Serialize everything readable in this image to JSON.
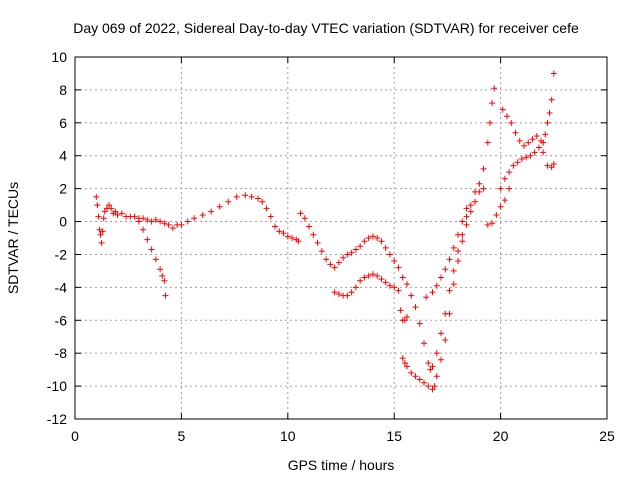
{
  "chart_data": {
    "type": "scatter",
    "title": "Day 069 of 2022, Sidereal Day-to-day VTEC variation (SDTVAR) for receiver cefe",
    "xlabel": "GPS time / hours",
    "ylabel": "SDTVAR / TECUs",
    "xlim": [
      0,
      25
    ],
    "ylim": [
      -12,
      10
    ],
    "xticks": [
      0,
      5,
      10,
      15,
      20,
      25
    ],
    "yticks": [
      -12,
      -10,
      -8,
      -6,
      -4,
      -2,
      0,
      2,
      4,
      6,
      8,
      10
    ],
    "grid": true,
    "marker": "+",
    "color": "#ff0000",
    "series": [
      {
        "points": [
          [
            1.0,
            1.5
          ],
          [
            1.05,
            1.0
          ],
          [
            1.1,
            0.3
          ],
          [
            1.15,
            -0.5
          ],
          [
            1.2,
            -0.8
          ],
          [
            1.25,
            -1.3
          ],
          [
            1.3,
            -0.6
          ],
          [
            1.35,
            0.2
          ],
          [
            1.4,
            0.6
          ],
          [
            1.5,
            0.8
          ],
          [
            1.6,
            1.0
          ],
          [
            1.7,
            0.8
          ],
          [
            1.8,
            0.5
          ],
          [
            1.9,
            0.6
          ],
          [
            2.0,
            0.4
          ],
          [
            2.2,
            0.5
          ],
          [
            2.4,
            0.3
          ],
          [
            2.6,
            0.3
          ],
          [
            2.8,
            0.3
          ],
          [
            3.0,
            0.2
          ],
          [
            3.2,
            0.2
          ],
          [
            3.4,
            0.1
          ],
          [
            3.6,
            0.0
          ],
          [
            3.8,
            0.1
          ],
          [
            4.0,
            0.0
          ],
          [
            4.2,
            -0.1
          ],
          [
            4.4,
            -0.2
          ],
          [
            4.6,
            -0.4
          ],
          [
            4.8,
            -0.2
          ],
          [
            5.0,
            -0.2
          ],
          [
            5.3,
            0.0
          ],
          [
            5.6,
            0.2
          ],
          [
            6.0,
            0.4
          ],
          [
            6.4,
            0.6
          ],
          [
            6.8,
            0.9
          ],
          [
            7.2,
            1.2
          ],
          [
            7.6,
            1.5
          ],
          [
            8.0,
            1.6
          ],
          [
            8.3,
            1.5
          ],
          [
            8.6,
            1.4
          ],
          [
            8.8,
            1.2
          ],
          [
            9.0,
            0.8
          ],
          [
            9.2,
            0.3
          ],
          [
            9.4,
            -0.3
          ],
          [
            9.6,
            -0.6
          ],
          [
            9.8,
            -0.7
          ],
          [
            10.0,
            -0.9
          ],
          [
            10.2,
            -1.0
          ],
          [
            10.4,
            -1.1
          ],
          [
            10.5,
            -1.2
          ],
          [
            10.6,
            0.5
          ],
          [
            10.8,
            0.2
          ],
          [
            11.0,
            -0.3
          ],
          [
            11.2,
            -0.8
          ],
          [
            11.4,
            -1.3
          ],
          [
            11.6,
            -1.8
          ],
          [
            11.8,
            -2.3
          ],
          [
            12.0,
            -2.6
          ],
          [
            12.2,
            -2.8
          ],
          [
            12.4,
            -2.5
          ],
          [
            12.6,
            -2.2
          ],
          [
            12.8,
            -2.0
          ],
          [
            13.0,
            -1.9
          ],
          [
            13.2,
            -1.7
          ],
          [
            13.4,
            -1.5
          ],
          [
            13.6,
            -1.2
          ],
          [
            13.8,
            -1.0
          ],
          [
            14.0,
            -0.9
          ],
          [
            14.2,
            -1.0
          ],
          [
            14.4,
            -1.2
          ],
          [
            14.6,
            -1.6
          ],
          [
            14.8,
            -2.0
          ],
          [
            15.0,
            -2.4
          ],
          [
            15.2,
            -2.8
          ],
          [
            15.4,
            -3.4
          ],
          [
            15.6,
            -3.8
          ],
          [
            15.8,
            -4.5
          ],
          [
            16.0,
            -5.2
          ],
          [
            16.2,
            -6.2
          ],
          [
            16.4,
            -7.4
          ],
          [
            16.6,
            -8.6
          ],
          [
            16.7,
            -9.0
          ],
          [
            16.8,
            -8.8
          ],
          [
            17.0,
            -8.0
          ],
          [
            17.2,
            -6.8
          ],
          [
            17.4,
            -5.6
          ],
          [
            17.6,
            -4.2
          ],
          [
            17.8,
            -3.0
          ],
          [
            18.0,
            -1.8
          ],
          [
            18.2,
            -0.8
          ],
          [
            18.4,
            0.3
          ],
          [
            18.6,
            1.0
          ],
          [
            18.8,
            1.8
          ],
          [
            19.0,
            2.3
          ],
          [
            19.2,
            3.2
          ],
          [
            19.4,
            4.8
          ],
          [
            19.5,
            6.0
          ],
          [
            19.6,
            7.2
          ],
          [
            19.7,
            8.1
          ],
          [
            20.0,
            2.0
          ],
          [
            20.2,
            2.6
          ],
          [
            20.4,
            3.0
          ],
          [
            20.6,
            3.4
          ],
          [
            20.8,
            3.6
          ],
          [
            21.0,
            3.8
          ],
          [
            21.2,
            3.9
          ],
          [
            21.4,
            4.0
          ],
          [
            21.6,
            4.2
          ],
          [
            21.8,
            4.5
          ],
          [
            22.0,
            4.8
          ],
          [
            22.1,
            5.3
          ],
          [
            22.2,
            6.0
          ],
          [
            22.3,
            6.6
          ],
          [
            22.4,
            7.4
          ],
          [
            22.5,
            9.0
          ]
        ]
      },
      {
        "points": [
          [
            3.0,
            0.0
          ],
          [
            3.2,
            -0.5
          ],
          [
            3.4,
            -1.1
          ],
          [
            3.6,
            -1.7
          ],
          [
            3.8,
            -2.3
          ],
          [
            4.0,
            -2.9
          ],
          [
            4.1,
            -3.3
          ],
          [
            4.2,
            -3.6
          ],
          [
            4.25,
            -4.5
          ],
          [
            12.2,
            -4.3
          ],
          [
            12.4,
            -4.4
          ],
          [
            12.6,
            -4.5
          ],
          [
            12.8,
            -4.5
          ],
          [
            13.0,
            -4.3
          ],
          [
            13.2,
            -4.0
          ],
          [
            13.4,
            -3.6
          ],
          [
            13.6,
            -3.4
          ],
          [
            13.8,
            -3.3
          ],
          [
            14.0,
            -3.2
          ],
          [
            14.2,
            -3.3
          ],
          [
            14.4,
            -3.5
          ],
          [
            14.6,
            -3.7
          ],
          [
            14.8,
            -3.9
          ],
          [
            15.0,
            -4.0
          ],
          [
            15.2,
            -4.2
          ],
          [
            15.3,
            -5.4
          ],
          [
            15.4,
            -6.0
          ],
          [
            15.5,
            -6.0
          ],
          [
            15.6,
            -5.8
          ],
          [
            15.4,
            -8.3
          ],
          [
            15.5,
            -8.6
          ],
          [
            15.6,
            -8.8
          ],
          [
            15.8,
            -9.2
          ],
          [
            16.0,
            -9.4
          ],
          [
            16.2,
            -9.6
          ],
          [
            16.4,
            -9.8
          ],
          [
            16.6,
            -10.0
          ],
          [
            16.8,
            -10.2
          ],
          [
            16.9,
            -10.0
          ],
          [
            17.0,
            -9.4
          ],
          [
            17.2,
            -8.4
          ],
          [
            17.4,
            -7.2
          ],
          [
            17.6,
            -5.6
          ],
          [
            17.8,
            -3.8
          ],
          [
            18.0,
            -2.4
          ],
          [
            18.2,
            -1.2
          ],
          [
            18.4,
            -0.2
          ],
          [
            18.6,
            0.6
          ],
          [
            18.8,
            1.2
          ],
          [
            19.0,
            1.8
          ],
          [
            19.2,
            2.0
          ],
          [
            19.4,
            -0.2
          ],
          [
            19.6,
            -0.1
          ],
          [
            19.8,
            0.4
          ],
          [
            20.0,
            0.9
          ],
          [
            20.2,
            1.3
          ],
          [
            20.4,
            2.0
          ],
          [
            20.1,
            6.8
          ],
          [
            20.3,
            6.4
          ],
          [
            20.5,
            6.0
          ],
          [
            20.7,
            5.4
          ],
          [
            20.9,
            4.9
          ],
          [
            21.1,
            4.6
          ],
          [
            21.3,
            4.8
          ],
          [
            21.5,
            5.0
          ],
          [
            21.7,
            5.2
          ],
          [
            21.9,
            4.9
          ],
          [
            22.0,
            4.2
          ],
          [
            22.2,
            3.4
          ],
          [
            22.4,
            3.3
          ],
          [
            22.5,
            3.5
          ],
          [
            16.5,
            -4.6
          ],
          [
            16.8,
            -4.3
          ],
          [
            17.0,
            -3.9
          ],
          [
            17.2,
            -3.4
          ],
          [
            17.4,
            -2.9
          ],
          [
            17.6,
            -2.3
          ],
          [
            17.8,
            -1.6
          ],
          [
            18.0,
            -0.8
          ],
          [
            18.2,
            0.0
          ],
          [
            18.4,
            0.8
          ]
        ]
      }
    ]
  }
}
